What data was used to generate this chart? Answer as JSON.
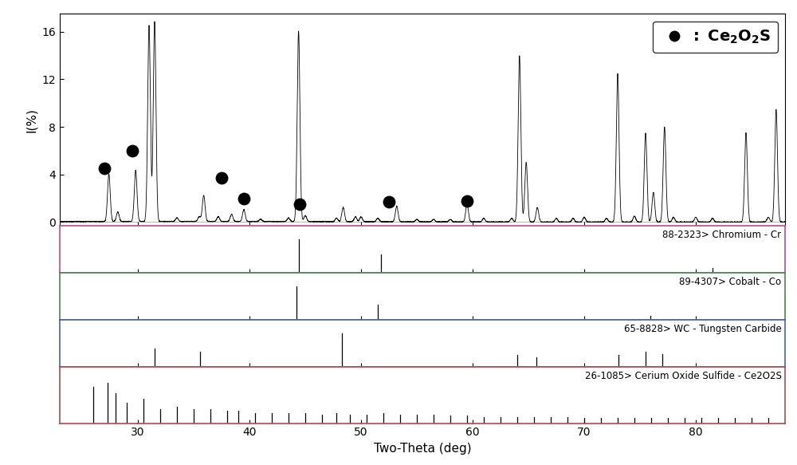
{
  "title": "",
  "xlabel": "Two-Theta (deg)",
  "ylabel": "I(%)",
  "xlim": [
    23,
    88
  ],
  "ylim_main": [
    -0.3,
    17.5
  ],
  "yticks_main": [
    0,
    4,
    8,
    12,
    16
  ],
  "xticks": [
    30,
    40,
    50,
    60,
    70,
    80
  ],
  "background_color": "#ffffff",
  "panel_labels": [
    "88-2323> Chromium - Cr",
    "89-4307> Cobalt - Co",
    "65-8828> WC - Tungsten Carbide",
    "26-1085> Cerium Oxide Sulfide - Ce2O2S"
  ],
  "panel_border_colors": [
    "#c060a0",
    "#60a060",
    "#6060c0",
    "#c06060"
  ],
  "main_peak_positions": [
    27.4,
    28.2,
    29.8,
    31.0,
    31.5,
    33.5,
    35.5,
    35.9,
    37.2,
    38.4,
    39.5,
    41.0,
    43.5,
    44.4,
    45.0,
    47.8,
    48.4,
    49.5,
    50.0,
    51.5,
    53.2,
    55.0,
    56.5,
    58.0,
    59.5,
    61.0,
    63.5,
    64.2,
    64.8,
    65.8,
    67.5,
    69.0,
    70.0,
    72.0,
    73.0,
    74.5,
    75.5,
    76.2,
    77.2,
    78.0,
    80.0,
    81.5,
    84.5,
    86.5,
    87.2
  ],
  "main_peak_intensities": [
    4.0,
    0.8,
    4.3,
    16.5,
    16.8,
    0.3,
    0.4,
    2.2,
    0.4,
    0.6,
    1.0,
    0.2,
    0.3,
    16.0,
    0.5,
    0.3,
    1.2,
    0.4,
    0.4,
    0.3,
    1.3,
    0.2,
    0.2,
    0.2,
    1.5,
    0.3,
    0.3,
    14.0,
    5.0,
    1.2,
    0.3,
    0.3,
    0.4,
    0.3,
    12.5,
    0.5,
    7.5,
    2.5,
    8.0,
    0.4,
    0.4,
    0.3,
    7.5,
    0.4,
    9.5
  ],
  "dot_x": [
    27.0,
    29.5,
    37.5,
    39.5,
    44.5,
    52.5,
    59.5
  ],
  "dot_y": [
    4.5,
    6.0,
    3.7,
    2.0,
    1.5,
    1.7,
    1.8
  ],
  "cr_peaks": [
    44.4,
    51.8,
    81.5
  ],
  "cr_intensities": [
    1.0,
    0.55,
    0.15
  ],
  "co_peaks": [
    44.2,
    51.5,
    75.9
  ],
  "co_intensities": [
    1.0,
    0.45,
    0.12
  ],
  "wc_peaks": [
    31.5,
    35.6,
    48.3,
    64.0,
    65.7,
    73.1,
    75.5,
    77.0
  ],
  "wc_intensities": [
    0.55,
    0.45,
    1.0,
    0.35,
    0.28,
    0.35,
    0.45,
    0.38
  ],
  "ce2o2s_peaks": [
    26.0,
    27.3,
    28.0,
    29.0,
    30.5,
    32.0,
    33.5,
    35.0,
    36.5,
    38.0,
    39.0,
    40.5,
    42.0,
    43.5,
    45.0,
    46.5,
    47.8,
    49.0,
    50.5,
    52.0,
    53.5,
    55.0,
    56.5,
    58.0,
    59.5,
    61.0,
    62.5,
    64.0,
    65.5,
    67.0,
    68.5,
    70.0,
    71.5,
    73.0,
    74.5,
    76.0,
    77.5,
    79.0,
    80.5,
    82.0,
    83.5,
    85.0,
    86.5
  ],
  "ce2o2s_intensities": [
    0.9,
    1.0,
    0.75,
    0.5,
    0.6,
    0.35,
    0.4,
    0.35,
    0.35,
    0.3,
    0.3,
    0.25,
    0.25,
    0.25,
    0.25,
    0.2,
    0.25,
    0.2,
    0.2,
    0.25,
    0.2,
    0.2,
    0.2,
    0.18,
    0.18,
    0.15,
    0.15,
    0.15,
    0.15,
    0.15,
    0.15,
    0.12,
    0.12,
    0.12,
    0.12,
    0.12,
    0.12,
    0.12,
    0.12,
    0.12,
    0.12,
    0.12,
    0.12
  ]
}
